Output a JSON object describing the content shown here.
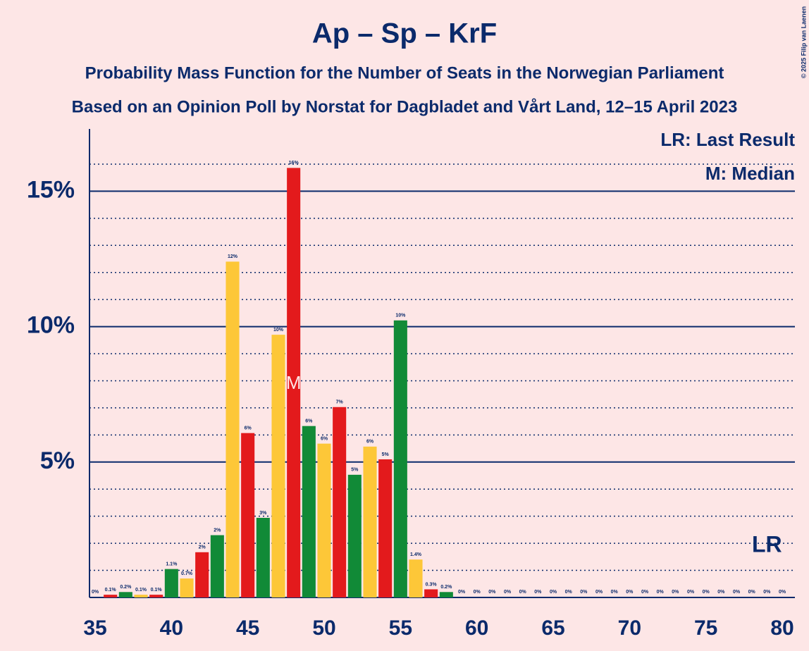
{
  "chart_data": {
    "type": "bar",
    "title": "Ap – Sp – KrF",
    "subtitle": "Probability Mass Function for the Number of Seats in the Norwegian Parliament",
    "subtitle2": "Based on an Opinion Poll by Norstat for Dagbladet and Vårt Land, 12–15 April 2023",
    "copyright": "© 2025 Filip van Laenen",
    "legend": [
      "LR: Last Result",
      "M: Median"
    ],
    "x": [
      35,
      36,
      37,
      38,
      39,
      40,
      41,
      42,
      43,
      44,
      45,
      46,
      47,
      48,
      49,
      50,
      51,
      52,
      53,
      54,
      55,
      56,
      57,
      58,
      59,
      60,
      61,
      62,
      63,
      64,
      65,
      66,
      67,
      68,
      69,
      70,
      71,
      72,
      73,
      74,
      75,
      76,
      77,
      78,
      79,
      80
    ],
    "values": [
      0,
      0.1,
      0.2,
      0.1,
      0.1,
      1.05,
      0.7,
      1.67,
      2.3,
      12.4,
      6.07,
      2.94,
      9.7,
      15.86,
      6.33,
      5.68,
      7.03,
      4.53,
      5.57,
      5.1,
      10.23,
      1.4,
      0.3,
      0.2,
      0,
      0,
      0,
      0,
      0,
      0,
      0,
      0,
      0,
      0,
      0,
      0,
      0,
      0,
      0,
      0,
      0,
      0,
      0,
      0,
      0,
      0
    ],
    "value_labels": [
      "0%",
      "0.1%",
      "0.2%",
      "0.1%",
      "0.1%",
      "1.1%",
      "0.7%",
      "2%",
      "2%",
      "12%",
      "6%",
      "3%",
      "10%",
      "16%",
      "6%",
      "6%",
      "7%",
      "5%",
      "6%",
      "5%",
      "10%",
      "1.4%",
      "0.3%",
      "0.2%",
      "0%",
      "0%",
      "0%",
      "0%",
      "0%",
      "0%",
      "0%",
      "0%",
      "0%",
      "0%",
      "0%",
      "0%",
      "0%",
      "0%",
      "0%",
      "0%",
      "0%",
      "0%",
      "0%",
      "0%",
      "0%",
      "0%"
    ],
    "palette": [
      "#fdc738",
      "#e31a1c",
      "#118a37"
    ],
    "median": 48,
    "median_label": "M",
    "last_result": 79,
    "last_result_label": "LR",
    "xlim": [
      35,
      80
    ],
    "xticks": [
      35,
      40,
      45,
      50,
      55,
      60,
      65,
      70,
      75,
      80
    ],
    "ylim": [
      0,
      17.3
    ],
    "yticks": [
      {
        "value": 5,
        "label": "5%"
      },
      {
        "value": 10,
        "label": "10%"
      },
      {
        "value": 15,
        "label": "15%"
      }
    ],
    "minor_yticks": [
      1,
      2,
      3,
      4,
      6,
      7,
      8,
      9,
      11,
      12,
      13,
      14,
      16
    ],
    "grid": true
  }
}
